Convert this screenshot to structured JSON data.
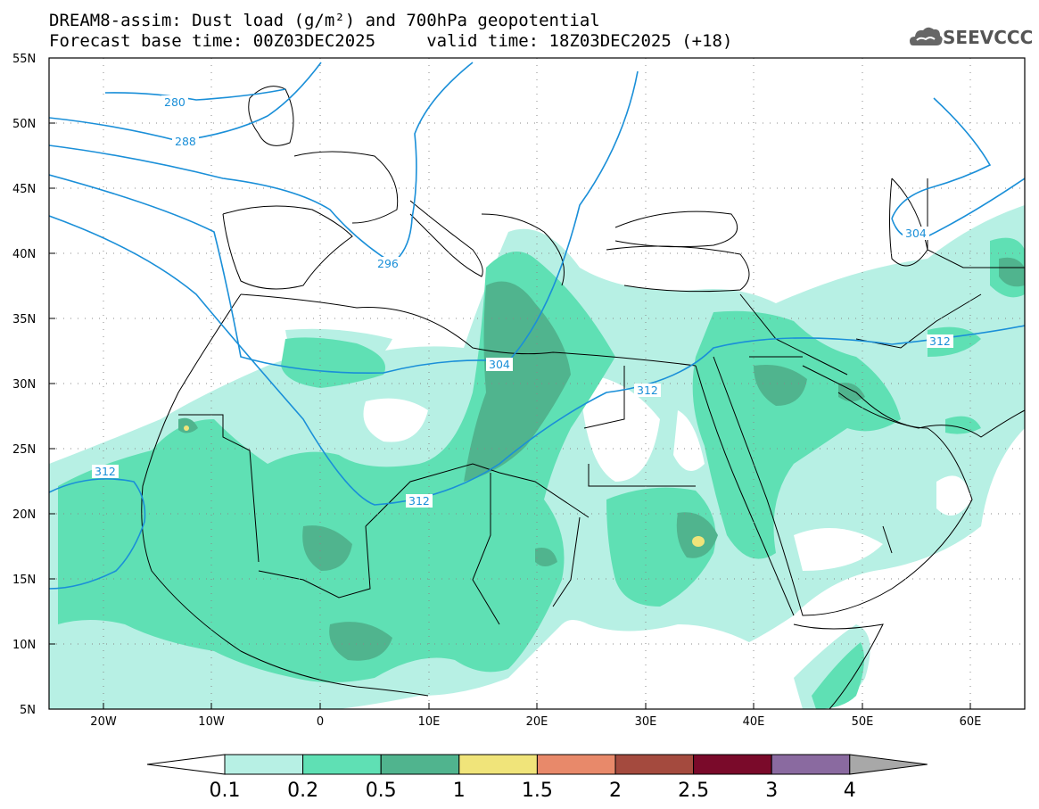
{
  "title_line1": "DREAM8-assim: Dust load (g/m²) and 700hPa geopotential",
  "title_line2": "Forecast base time: 00Z03DEC2025     valid time: 18Z03DEC2025 (+18)",
  "logo_text": "SEEVCCC",
  "logo_icon": "cloud-icon",
  "map": {
    "lon_range": [
      -25,
      65
    ],
    "lat_range": [
      5,
      55
    ],
    "lat_ticks": [
      "55N",
      "50N",
      "45N",
      "40N",
      "35N",
      "30N",
      "25N",
      "20N",
      "15N",
      "10N",
      "5N"
    ],
    "lon_ticks": [
      "20W",
      "10W",
      "0",
      "10E",
      "20E",
      "30E",
      "40E",
      "50E",
      "60E"
    ],
    "gridlines": "dotted",
    "contour_color": "#1a8fd8",
    "contour_labels": [
      "280",
      "288",
      "296",
      "304",
      "304",
      "312",
      "312",
      "312",
      "312"
    ]
  },
  "colorbar": {
    "labels": [
      "0.1",
      "0.2",
      "0.5",
      "1",
      "1.5",
      "2",
      "2.5",
      "3",
      "4"
    ],
    "colors": [
      "#b7f0e4",
      "#5fe0b4",
      "#50b48e",
      "#f0e47a",
      "#e8896a",
      "#a44a3e",
      "#7a0a2a",
      "#8a6aa0",
      "#a8a8a8"
    ],
    "under_color": "#ffffff"
  }
}
